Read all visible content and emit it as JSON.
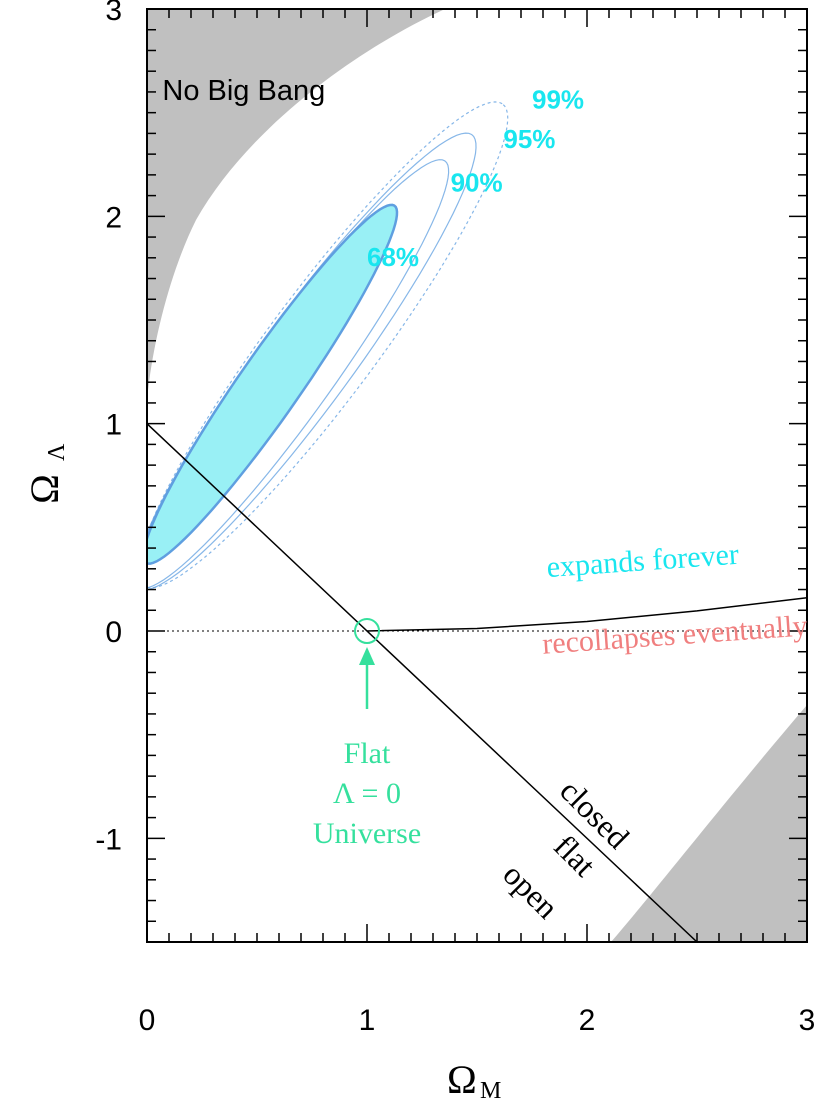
{
  "chart_data": {
    "type": "contour",
    "xlabel": "Ω",
    "xlabel_sub": "M",
    "ylabel": "Ω",
    "ylabel_sub": "Λ",
    "xlim": [
      0,
      3
    ],
    "ylim": [
      -1.5,
      3
    ],
    "x_ticks": [
      {
        "value": 0,
        "label": "0"
      },
      {
        "value": 1,
        "label": "1"
      },
      {
        "value": 2,
        "label": "2"
      },
      {
        "value": 3,
        "label": "3"
      }
    ],
    "y_ticks": [
      {
        "value": -1,
        "label": "-1"
      },
      {
        "value": 0,
        "label": "0"
      },
      {
        "value": 1,
        "label": "1"
      },
      {
        "value": 2,
        "label": "2"
      },
      {
        "value": 3,
        "label": "3"
      }
    ],
    "minor_tick_step": 0.1,
    "grid": false,
    "confidence_contours": {
      "color_fill": "#99f0f5",
      "color_line": "#5f9fe0",
      "color_label": "#19e6ef",
      "levels": [
        {
          "label": "68%",
          "center": [
            0.56,
            1.19
          ],
          "angle_deg": 56.8,
          "semi_major": 1.03,
          "semi_minor": 0.142,
          "style": "solid",
          "label_pos": [
            1.0,
            1.76
          ]
        },
        {
          "label": "90%",
          "center": [
            0.66,
            1.24
          ],
          "angle_deg": 56.0,
          "semi_major": 1.24,
          "semi_minor": 0.19,
          "style": "solid",
          "label_pos": [
            1.38,
            2.12
          ]
        },
        {
          "label": "95%",
          "center": [
            0.72,
            1.3
          ],
          "angle_deg": 55.4,
          "semi_major": 1.33,
          "semi_minor": 0.215,
          "style": "solid",
          "label_pos": [
            1.62,
            2.33
          ]
        },
        {
          "label": "99%",
          "center": [
            0.8,
            1.38
          ],
          "angle_deg": 55.0,
          "semi_major": 1.42,
          "semi_minor": 0.25,
          "style": "dotted",
          "label_pos": [
            1.75,
            2.52
          ]
        }
      ]
    },
    "regions": [
      {
        "label": "No Big Bang",
        "color": "#c0c0c0",
        "label_pos": [
          0.07,
          2.56
        ]
      },
      {
        "label": "",
        "color": "#c0c0c0"
      }
    ],
    "flat_line": {
      "x": [
        0,
        2.5
      ],
      "y": [
        1,
        -1.5
      ]
    },
    "expansion_boundary": {
      "x": [
        1,
        1.5,
        2,
        2.5,
        3
      ],
      "y": [
        0,
        0.012,
        0.046,
        0.097,
        0.16
      ]
    },
    "annotations": {
      "expands_forever": {
        "text": "expands forever",
        "pos": [
          1.82,
          0.26
        ],
        "color": "#19e6ef"
      },
      "recollapses": {
        "text": "recollapses eventually",
        "pos": [
          1.8,
          -0.11
        ],
        "color": "#f07f7f"
      },
      "flat_universe": {
        "lines": [
          "Flat",
          "Λ = 0",
          "Universe"
        ],
        "color": "#35e09d",
        "point": [
          1,
          0
        ]
      },
      "closed": {
        "text": "closed",
        "pos": [
          2.0,
          -0.92
        ],
        "angle_deg": 45
      },
      "flat": {
        "text": "flat",
        "pos": [
          1.91,
          -1.12
        ],
        "angle_deg": 45
      },
      "open": {
        "text": "open",
        "pos": [
          1.71,
          -1.29
        ],
        "angle_deg": 45
      }
    }
  }
}
